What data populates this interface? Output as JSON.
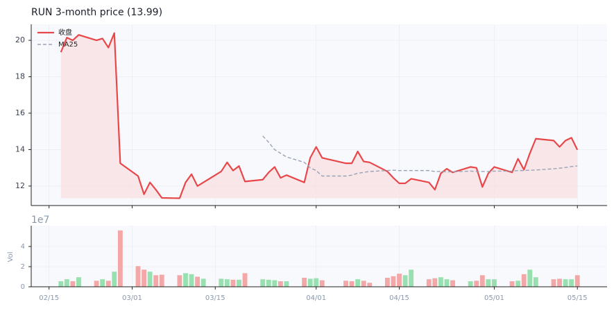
{
  "chart_data": {
    "type": "price-volume",
    "title": "RUN  3-month price (13.99)",
    "x": [
      "02/17",
      "02/18",
      "02/19",
      "02/20",
      "02/23",
      "02/24",
      "02/25",
      "02/26",
      "02/27",
      "03/02",
      "03/03",
      "03/04",
      "03/05",
      "03/06",
      "03/09",
      "03/10",
      "03/11",
      "03/12",
      "03/13",
      "03/16",
      "03/17",
      "03/18",
      "03/19",
      "03/20",
      "03/23",
      "03/24",
      "03/25",
      "03/26",
      "03/27",
      "03/30",
      "03/31",
      "04/01",
      "04/02",
      "04/06",
      "04/07",
      "04/08",
      "04/09",
      "04/10",
      "04/13",
      "04/14",
      "04/15",
      "04/16",
      "04/17",
      "04/20",
      "04/21",
      "04/22",
      "04/23",
      "04/24",
      "04/27",
      "04/28",
      "04/29",
      "04/30",
      "05/01",
      "05/04",
      "05/05",
      "05/06",
      "05/07",
      "05/08",
      "05/11",
      "05/12",
      "05/13",
      "05/14",
      "05/15"
    ],
    "xlim": [
      "02/12",
      "05/20"
    ],
    "xticks": [
      "02/15",
      "03/01",
      "03/15",
      "04/01",
      "04/15",
      "05/01",
      "05/15"
    ],
    "ylim": [
      10.93,
      20.88
    ],
    "yticks": [
      12,
      14,
      16,
      18,
      20
    ],
    "grid": true,
    "legend": "upper left",
    "series": [
      {
        "name": "收盘",
        "color": "#e8474a",
        "fill": "#f8e1e4",
        "values": [
          19.35,
          20.15,
          20.0,
          20.3,
          20.0,
          20.1,
          19.6,
          20.4,
          13.25,
          12.55,
          11.55,
          12.2,
          11.8,
          11.35,
          11.33,
          12.2,
          12.65,
          12.0,
          12.2,
          12.8,
          13.3,
          12.85,
          13.1,
          12.25,
          12.35,
          12.75,
          13.05,
          12.45,
          12.6,
          12.2,
          13.55,
          14.15,
          13.55,
          13.25,
          13.25,
          13.9,
          13.35,
          13.3,
          12.8,
          12.45,
          12.15,
          12.15,
          12.4,
          12.2,
          11.8,
          12.7,
          12.95,
          12.75,
          13.05,
          13.0,
          11.95,
          12.7,
          13.05,
          12.75,
          13.5,
          12.9,
          13.8,
          14.6,
          14.5,
          14.15,
          14.5,
          14.65,
          13.99
        ]
      },
      {
        "name": "MA25",
        "color": "#9aa3b5",
        "dashed": true,
        "values": [
          null,
          null,
          null,
          null,
          null,
          null,
          null,
          null,
          null,
          null,
          null,
          null,
          null,
          null,
          null,
          null,
          null,
          null,
          null,
          null,
          null,
          null,
          null,
          null,
          14.75,
          14.4,
          14.0,
          13.8,
          13.6,
          13.3,
          13.0,
          12.85,
          12.55,
          12.55,
          12.6,
          12.7,
          12.75,
          12.8,
          12.85,
          12.87,
          12.85,
          12.85,
          12.85,
          12.85,
          12.8,
          12.8,
          12.78,
          12.78,
          12.82,
          12.8,
          12.8,
          12.8,
          12.82,
          12.82,
          12.85,
          12.85,
          12.87,
          12.88,
          12.95,
          12.98,
          13.02,
          13.07,
          13.1
        ]
      }
    ],
    "volume": {
      "ylabel": "Vol",
      "exponent_label": "1e7",
      "ylim": [
        0,
        6.07
      ],
      "yticks": [
        0,
        2,
        4
      ],
      "values": [
        0.55,
        0.75,
        0.55,
        0.95,
        0.6,
        0.75,
        0.6,
        1.5,
        5.6,
        2.05,
        1.7,
        1.5,
        1.15,
        1.2,
        1.15,
        1.35,
        1.25,
        1.0,
        0.8,
        0.8,
        0.75,
        0.7,
        0.7,
        1.35,
        0.75,
        0.7,
        0.65,
        0.55,
        0.55,
        0.9,
        0.8,
        0.85,
        0.65,
        0.6,
        0.55,
        0.75,
        0.6,
        0.4,
        0.9,
        1.05,
        1.3,
        1.15,
        1.7,
        0.75,
        0.85,
        0.95,
        0.75,
        0.65,
        0.55,
        0.6,
        1.15,
        0.75,
        0.75,
        0.55,
        0.6,
        1.25,
        1.7,
        0.95,
        0.75,
        0.8,
        0.75,
        0.75,
        1.15
      ],
      "colors": [
        "#98e0b0",
        "#98e0b0",
        "#f4a7a7",
        "#98e0b0",
        "#f4a7a7",
        "#98e0b0",
        "#f4a7a7",
        "#98e0b0",
        "#f4a7a7",
        "#f4a7a7",
        "#f4a7a7",
        "#98e0b0",
        "#f4a7a7",
        "#f4a7a7",
        "#f4a7a7",
        "#98e0b0",
        "#98e0b0",
        "#f4a7a7",
        "#98e0b0",
        "#98e0b0",
        "#98e0b0",
        "#f4a7a7",
        "#98e0b0",
        "#f4a7a7",
        "#98e0b0",
        "#98e0b0",
        "#98e0b0",
        "#f4a7a7",
        "#98e0b0",
        "#f4a7a7",
        "#98e0b0",
        "#98e0b0",
        "#f4a7a7",
        "#f4a7a7",
        "#f4a7a7",
        "#98e0b0",
        "#f4a7a7",
        "#f4a7a7",
        "#f4a7a7",
        "#f4a7a7",
        "#f4a7a7",
        "#98e0b0",
        "#98e0b0",
        "#f4a7a7",
        "#f4a7a7",
        "#98e0b0",
        "#98e0b0",
        "#f4a7a7",
        "#98e0b0",
        "#f4a7a7",
        "#f4a7a7",
        "#98e0b0",
        "#98e0b0",
        "#f4a7a7",
        "#98e0b0",
        "#f4a7a7",
        "#98e0b0",
        "#98e0b0",
        "#f4a7a7",
        "#f4a7a7",
        "#98e0b0",
        "#98e0b0",
        "#f4a7a7"
      ]
    }
  }
}
